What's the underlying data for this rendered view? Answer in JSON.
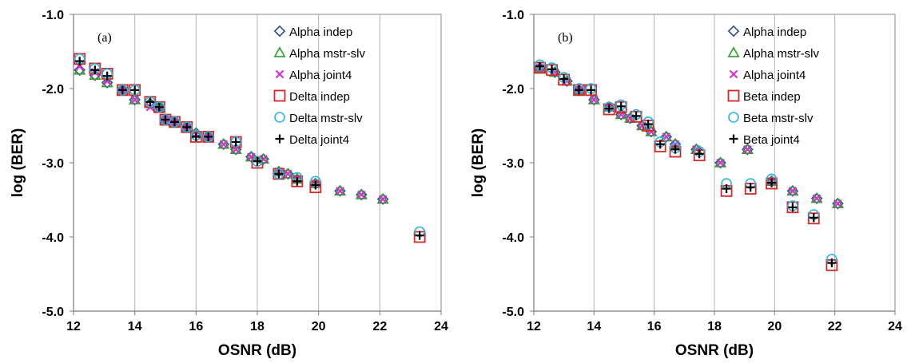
{
  "chart_data": [
    {
      "type": "scatter",
      "panel_label": "(a)",
      "xlabel": "OSNR (dB)",
      "ylabel": "log (BER)",
      "xlim": [
        12,
        24
      ],
      "ylim": [
        -5,
        -1
      ],
      "xticks": [
        "12",
        "14",
        "16",
        "18",
        "20",
        "22",
        "24"
      ],
      "yticks": [
        "-1.0",
        "-2.0",
        "-3.0",
        "-4.0",
        "-5.0"
      ],
      "grid": "vertical",
      "legend_position": "top-right",
      "series": [
        {
          "name": "Alpha indep",
          "marker": "diamond",
          "color": "#2f4f8f",
          "x": [
            12.2,
            12.7,
            13.1,
            13.6,
            14.0,
            14.5,
            14.8,
            15.0,
            15.3,
            15.7,
            16.0,
            16.4,
            16.9,
            17.3,
            17.8,
            18.2,
            18.7,
            19.0,
            19.3,
            19.9,
            20.7,
            21.4,
            22.1
          ],
          "y": [
            -1.75,
            -1.82,
            -1.92,
            -2.02,
            -2.15,
            -2.2,
            -2.25,
            -2.42,
            -2.45,
            -2.52,
            -2.6,
            -2.65,
            -2.75,
            -2.82,
            -2.92,
            -2.95,
            -3.12,
            -3.15,
            -3.22,
            -3.28,
            -3.38,
            -3.43,
            -3.49
          ]
        },
        {
          "name": "Alpha mstr-slv",
          "marker": "triangle",
          "color": "#2ca02c",
          "x": [
            12.2,
            12.7,
            13.1,
            13.6,
            14.0,
            14.5,
            14.8,
            15.0,
            15.3,
            15.7,
            16.0,
            16.4,
            16.9,
            17.3,
            17.8,
            18.2,
            18.7,
            19.0,
            19.3,
            19.9,
            20.7,
            21.4,
            22.1
          ],
          "y": [
            -1.75,
            -1.82,
            -1.92,
            -2.02,
            -2.15,
            -2.2,
            -2.25,
            -2.42,
            -2.45,
            -2.52,
            -2.6,
            -2.65,
            -2.75,
            -2.82,
            -2.92,
            -2.95,
            -3.12,
            -3.15,
            -3.22,
            -3.28,
            -3.38,
            -3.43,
            -3.49
          ]
        },
        {
          "name": "Alpha joint4",
          "marker": "x",
          "color": "#d62fd6",
          "x": [
            12.2,
            12.7,
            13.1,
            13.6,
            14.0,
            14.5,
            14.8,
            15.0,
            15.3,
            15.7,
            16.0,
            16.4,
            16.9,
            17.3,
            17.8,
            18.2,
            18.7,
            19.0,
            19.3,
            19.9,
            20.7,
            21.4,
            22.1
          ],
          "y": [
            -1.7,
            -1.78,
            -1.9,
            -2.02,
            -2.15,
            -2.25,
            -2.28,
            -2.42,
            -2.45,
            -2.52,
            -2.62,
            -2.65,
            -2.75,
            -2.82,
            -2.92,
            -2.95,
            -3.12,
            -3.15,
            -3.22,
            -3.28,
            -3.38,
            -3.43,
            -3.49
          ]
        },
        {
          "name": "Delta indep",
          "marker": "square",
          "color": "#d62728",
          "x": [
            12.2,
            12.7,
            13.1,
            13.6,
            14.0,
            14.5,
            14.8,
            15.0,
            15.3,
            15.7,
            16.0,
            16.4,
            17.3,
            18.0,
            18.7,
            19.3,
            19.9,
            23.3
          ],
          "y": [
            -1.6,
            -1.73,
            -1.8,
            -2.02,
            -2.02,
            -2.18,
            -2.25,
            -2.42,
            -2.45,
            -2.52,
            -2.65,
            -2.65,
            -2.72,
            -3.0,
            -3.15,
            -3.25,
            -3.33,
            -4.0
          ]
        },
        {
          "name": "Delta mstr-slv",
          "marker": "circle",
          "color": "#29b6e3",
          "x": [
            12.2,
            12.7,
            13.1,
            13.6,
            14.0,
            14.5,
            14.8,
            15.0,
            15.3,
            15.7,
            16.0,
            16.4,
            17.3,
            18.0,
            18.7,
            19.3,
            19.9,
            23.3
          ],
          "y": [
            -1.6,
            -1.73,
            -1.8,
            -2.02,
            -2.02,
            -2.18,
            -2.25,
            -2.42,
            -2.45,
            -2.52,
            -2.63,
            -2.65,
            -2.72,
            -2.98,
            -3.15,
            -3.2,
            -3.25,
            -3.93
          ]
        },
        {
          "name": "Delta joint4",
          "marker": "plus",
          "color": "#000000",
          "x": [
            12.2,
            12.7,
            13.1,
            13.6,
            14.0,
            14.5,
            14.8,
            15.0,
            15.3,
            15.7,
            16.0,
            16.4,
            17.3,
            18.0,
            18.7,
            19.3,
            19.9,
            23.3
          ],
          "y": [
            -1.63,
            -1.75,
            -1.83,
            -2.02,
            -2.02,
            -2.18,
            -2.25,
            -2.42,
            -2.45,
            -2.52,
            -2.65,
            -2.65,
            -2.72,
            -2.98,
            -3.15,
            -3.25,
            -3.3,
            -3.98
          ]
        }
      ]
    },
    {
      "type": "scatter",
      "panel_label": "(b)",
      "xlabel": "OSNR (dB)",
      "ylabel": "log (BER)",
      "xlim": [
        12,
        24
      ],
      "ylim": [
        -5,
        -1
      ],
      "xticks": [
        "12",
        "14",
        "16",
        "18",
        "20",
        "22",
        "24"
      ],
      "yticks": [
        "-1.0",
        "-2.0",
        "-3.0",
        "-4.0",
        "-5.0"
      ],
      "grid": "vertical",
      "legend_position": "top-right",
      "series": [
        {
          "name": "Alpha indep",
          "marker": "diamond",
          "color": "#2f4f8f",
          "x": [
            12.2,
            12.7,
            13.1,
            13.5,
            14.0,
            14.5,
            14.9,
            15.2,
            15.6,
            15.9,
            16.4,
            16.7,
            17.4,
            18.2,
            19.1,
            19.9,
            20.6,
            21.4,
            22.1
          ],
          "y": [
            -1.72,
            -1.78,
            -1.9,
            -2.02,
            -2.15,
            -2.25,
            -2.35,
            -2.4,
            -2.5,
            -2.58,
            -2.65,
            -2.75,
            -2.82,
            -3.0,
            -2.82,
            -3.25,
            -3.38,
            -3.48,
            -3.55
          ]
        },
        {
          "name": "Alpha mstr-slv",
          "marker": "triangle",
          "color": "#2ca02c",
          "x": [
            12.2,
            12.7,
            13.1,
            13.5,
            14.0,
            14.5,
            14.9,
            15.2,
            15.6,
            15.9,
            16.4,
            16.7,
            17.4,
            18.2,
            19.1,
            19.9,
            20.6,
            21.4,
            22.1
          ],
          "y": [
            -1.72,
            -1.78,
            -1.9,
            -2.02,
            -2.15,
            -2.25,
            -2.35,
            -2.4,
            -2.5,
            -2.58,
            -2.65,
            -2.75,
            -2.82,
            -3.0,
            -2.82,
            -3.25,
            -3.38,
            -3.48,
            -3.55
          ]
        },
        {
          "name": "Alpha joint4",
          "marker": "x",
          "color": "#d62fd6",
          "x": [
            12.2,
            12.7,
            13.1,
            13.5,
            14.0,
            14.5,
            14.9,
            15.2,
            15.6,
            15.9,
            16.4,
            16.7,
            17.4,
            18.2,
            19.1,
            19.9,
            20.6,
            21.4,
            22.1
          ],
          "y": [
            -1.72,
            -1.78,
            -1.9,
            -2.02,
            -2.15,
            -2.25,
            -2.35,
            -2.4,
            -2.5,
            -2.58,
            -2.65,
            -2.75,
            -2.82,
            -3.0,
            -2.82,
            -3.25,
            -3.38,
            -3.48,
            -3.55
          ]
        },
        {
          "name": "Beta indep",
          "marker": "square",
          "color": "#d62728",
          "x": [
            12.2,
            12.6,
            13.0,
            13.5,
            13.9,
            14.5,
            14.9,
            15.4,
            15.8,
            16.2,
            16.7,
            17.5,
            18.4,
            19.2,
            19.9,
            20.6,
            21.3,
            21.9
          ],
          "y": [
            -1.72,
            -1.75,
            -1.88,
            -2.02,
            -2.02,
            -2.28,
            -2.25,
            -2.38,
            -2.5,
            -2.78,
            -2.85,
            -2.9,
            -3.38,
            -3.35,
            -3.28,
            -3.6,
            -3.75,
            -4.38
          ]
        },
        {
          "name": "Beta mstr-slv",
          "marker": "circle",
          "color": "#29b6e3",
          "x": [
            12.2,
            12.6,
            13.0,
            13.5,
            13.9,
            14.5,
            14.9,
            15.4,
            15.8,
            16.2,
            16.7,
            17.5,
            18.4,
            19.2,
            19.9,
            20.6,
            21.3,
            21.9
          ],
          "y": [
            -1.68,
            -1.72,
            -1.85,
            -2.0,
            -2.0,
            -2.25,
            -2.22,
            -2.35,
            -2.45,
            -2.72,
            -2.8,
            -2.85,
            -3.28,
            -3.28,
            -3.22,
            -3.58,
            -3.7,
            -4.3
          ]
        },
        {
          "name": "Beta joint4",
          "marker": "plus",
          "color": "#000000",
          "x": [
            12.2,
            12.6,
            13.0,
            13.5,
            13.9,
            14.5,
            14.9,
            15.4,
            15.8,
            16.2,
            16.7,
            17.5,
            18.4,
            19.2,
            19.9,
            20.6,
            21.3,
            21.9
          ],
          "y": [
            -1.7,
            -1.74,
            -1.87,
            -2.02,
            -2.02,
            -2.27,
            -2.24,
            -2.37,
            -2.48,
            -2.75,
            -2.82,
            -2.88,
            -3.35,
            -3.33,
            -3.27,
            -3.6,
            -3.74,
            -4.35
          ]
        }
      ]
    }
  ]
}
